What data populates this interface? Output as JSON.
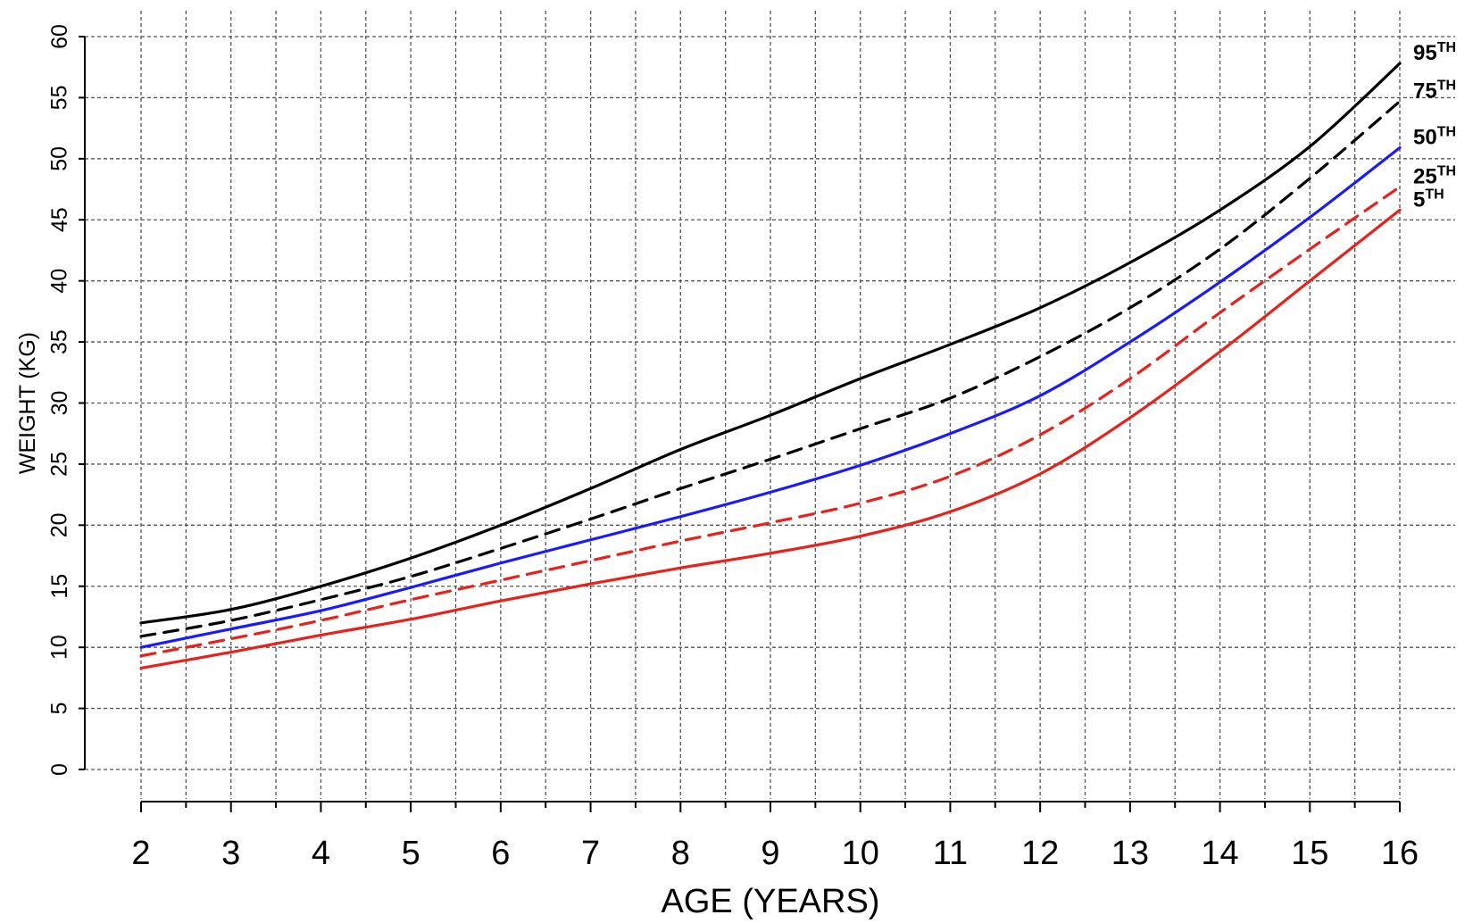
{
  "chart_data": {
    "type": "line",
    "title": "",
    "xlabel": "AGE (YEARS)",
    "ylabel": "WEIGHT (KG)",
    "xlim": [
      2,
      16
    ],
    "ylim": [
      0,
      60
    ],
    "x_ticks": [
      2,
      3,
      4,
      5,
      6,
      7,
      8,
      9,
      10,
      11,
      12,
      13,
      14,
      15,
      16
    ],
    "x_tick_labels": [
      "2",
      "3",
      "4",
      "5",
      "6",
      "7",
      "8",
      "9",
      "10",
      "11",
      "12",
      "13",
      "14",
      "15",
      "16"
    ],
    "y_ticks": [
      0,
      5,
      10,
      15,
      20,
      25,
      30,
      35,
      40,
      45,
      50,
      55,
      60
    ],
    "y_tick_labels": [
      "0",
      "5",
      "10",
      "15",
      "20",
      "25",
      "30",
      "35",
      "40",
      "45",
      "50",
      "55",
      "60"
    ],
    "grid": true,
    "legend": "inline labels at right end of lines",
    "x": [
      2,
      3,
      4,
      5,
      6,
      7,
      8,
      9,
      10,
      11,
      12,
      13,
      14,
      15,
      16
    ],
    "series": [
      {
        "name": "95",
        "suffix": "TH",
        "color": "#000000",
        "style": "solid",
        "values": [
          12.0,
          13.1,
          15.0,
          17.3,
          20.0,
          23.0,
          26.2,
          29.0,
          32.0,
          34.8,
          37.8,
          41.5,
          45.8,
          51.0,
          57.8
        ]
      },
      {
        "name": "75",
        "suffix": "TH",
        "color": "#000000",
        "style": "dashed",
        "values": [
          10.9,
          12.2,
          13.9,
          15.8,
          18.1,
          20.5,
          23.0,
          25.4,
          27.9,
          30.4,
          33.8,
          37.8,
          42.6,
          48.4,
          54.7
        ]
      },
      {
        "name": "50",
        "suffix": "TH",
        "color": "#1a1aff",
        "style": "solid",
        "values": [
          10.0,
          11.5,
          13.0,
          14.9,
          16.9,
          18.8,
          20.7,
          22.7,
          24.9,
          27.5,
          30.6,
          35.0,
          39.9,
          45.2,
          50.9
        ]
      },
      {
        "name": "25",
        "suffix": "TH",
        "color": "#e8211b",
        "style": "dashed",
        "values": [
          9.3,
          10.7,
          12.2,
          13.9,
          15.5,
          17.1,
          18.7,
          20.2,
          21.8,
          24.0,
          27.4,
          32.0,
          37.4,
          42.6,
          47.7
        ]
      },
      {
        "name": "5",
        "suffix": "TH",
        "color": "#e8211b",
        "style": "solid",
        "values": [
          8.3,
          9.6,
          11.0,
          12.3,
          13.8,
          15.2,
          16.5,
          17.7,
          19.1,
          21.1,
          24.2,
          28.8,
          34.2,
          40.0,
          45.8
        ]
      }
    ]
  }
}
